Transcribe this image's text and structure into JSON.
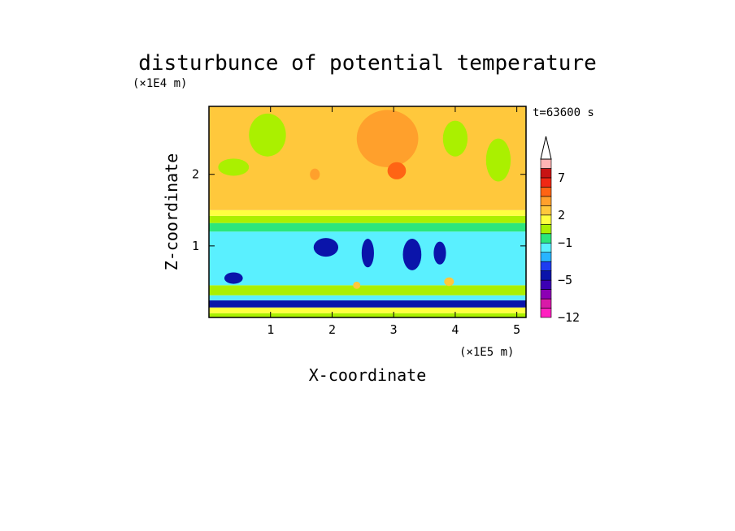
{
  "chart_data": {
    "type": "heatmap",
    "title": "disturbunce of potential temperature",
    "xlabel": "X-coordinate",
    "ylabel": "Z-coordinate",
    "x_scale_label": "(×1E5 m)",
    "y_scale_label": "(×1E4 m)",
    "time_label": "t=63600 s",
    "xlim": [
      0,
      5.15
    ],
    "ylim": [
      0,
      2.95
    ],
    "x_ticks": [
      "1",
      "2",
      "3",
      "4",
      "5"
    ],
    "y_ticks": [
      "1",
      "2"
    ],
    "grid": false,
    "colorbar": {
      "placement": "right",
      "levels": [
        -12,
        -11,
        -9,
        -7,
        -5,
        -4,
        -3,
        -2,
        -1,
        0,
        1,
        2,
        3,
        4,
        5,
        7,
        9,
        11
      ],
      "labels": [
        "−12",
        "−5",
        "−1",
        "2",
        "7"
      ],
      "colors": [
        "#ff20c0",
        "#d81aa8",
        "#8c00b4",
        "#3c00b4",
        "#0a14aa",
        "#1e3cf0",
        "#28b4ff",
        "#5af0ff",
        "#2ce67c",
        "#aaf000",
        "#ffff40",
        "#ffc83c",
        "#ffa02c",
        "#ff6414",
        "#f02814",
        "#c81414",
        "#ffb4b4"
      ]
    },
    "bands": [
      {
        "z": [
          0.0,
          0.06
        ],
        "anomaly": 0.5
      },
      {
        "z": [
          0.06,
          0.14
        ],
        "anomaly": 1.5
      },
      {
        "z": [
          0.14,
          0.24
        ],
        "anomaly": -4.5
      },
      {
        "z": [
          0.24,
          0.31
        ],
        "anomaly": -1.5
      },
      {
        "z": [
          0.31,
          0.45
        ],
        "anomaly": 0.5
      },
      {
        "z": [
          0.45,
          1.2
        ],
        "anomaly": -1.5
      },
      {
        "z": [
          1.2,
          1.32
        ],
        "anomaly": -0.5
      },
      {
        "z": [
          1.32,
          1.42
        ],
        "anomaly": 0.5
      },
      {
        "z": [
          1.42,
          1.5
        ],
        "anomaly": 1.5
      },
      {
        "z": [
          1.5,
          2.95
        ],
        "anomaly": 2.5
      }
    ],
    "features": [
      {
        "x": 1.9,
        "z": 0.98,
        "rx": 0.2,
        "rz": 0.13,
        "anomaly": -4.5
      },
      {
        "x": 2.58,
        "z": 0.9,
        "rx": 0.1,
        "rz": 0.2,
        "anomaly": -4.5
      },
      {
        "x": 3.3,
        "z": 0.88,
        "rx": 0.15,
        "rz": 0.22,
        "anomaly": -4.5
      },
      {
        "x": 3.75,
        "z": 0.9,
        "rx": 0.1,
        "rz": 0.16,
        "anomaly": -4.5
      },
      {
        "x": 0.4,
        "z": 0.55,
        "rx": 0.15,
        "rz": 0.08,
        "anomaly": -4.5
      },
      {
        "x": 0.4,
        "z": 2.1,
        "rx": 0.25,
        "rz": 0.12,
        "anomaly": 0.5
      },
      {
        "x": 0.95,
        "z": 2.55,
        "rx": 0.3,
        "rz": 0.3,
        "anomaly": 0.5
      },
      {
        "x": 2.9,
        "z": 2.5,
        "rx": 0.5,
        "rz": 0.4,
        "anomaly": 3.5
      },
      {
        "x": 3.05,
        "z": 2.05,
        "rx": 0.15,
        "rz": 0.12,
        "anomaly": 4.5
      },
      {
        "x": 1.72,
        "z": 2.0,
        "rx": 0.08,
        "rz": 0.08,
        "anomaly": 3.5
      },
      {
        "x": 4.0,
        "z": 2.5,
        "rx": 0.2,
        "rz": 0.25,
        "anomaly": 0.5
      },
      {
        "x": 4.7,
        "z": 2.2,
        "rx": 0.2,
        "rz": 0.3,
        "anomaly": 0.5
      },
      {
        "x": 3.9,
        "z": 0.5,
        "rx": 0.08,
        "rz": 0.06,
        "anomaly": 2.5
      },
      {
        "x": 2.4,
        "z": 0.45,
        "rx": 0.06,
        "rz": 0.05,
        "anomaly": 2.5
      }
    ]
  }
}
